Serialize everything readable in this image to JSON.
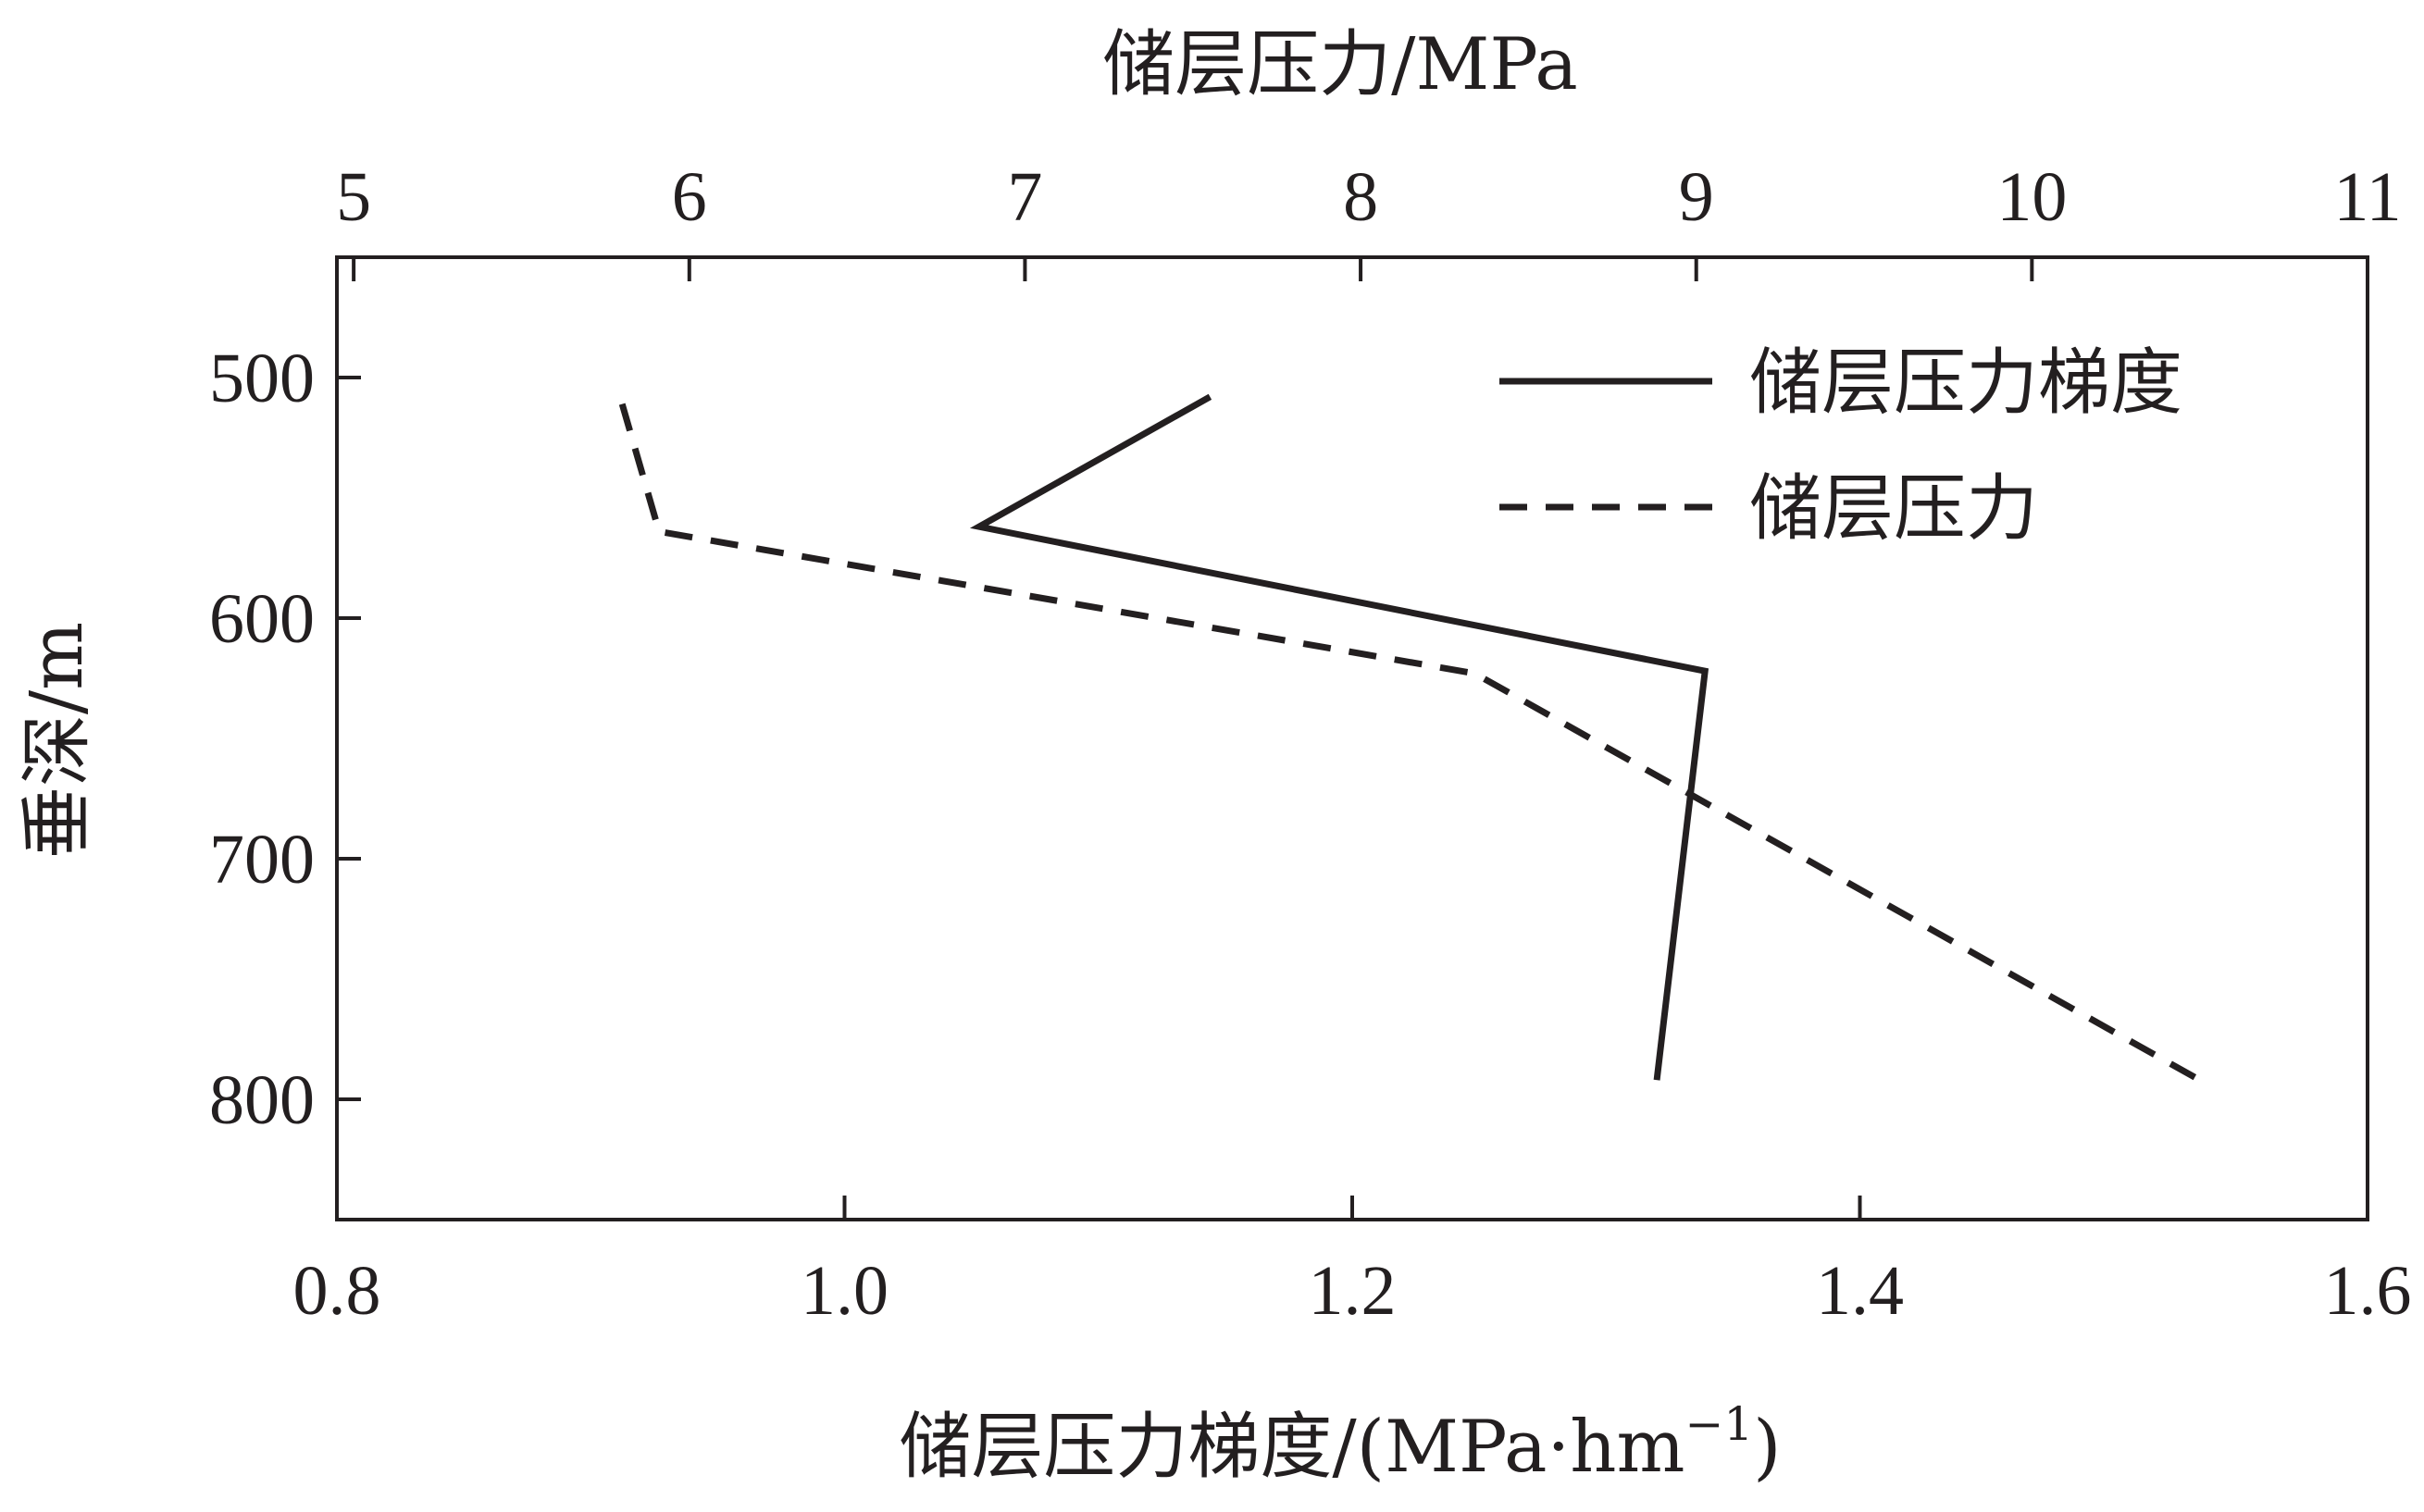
{
  "chart_data": {
    "type": "line",
    "orientation": "depth-vertical",
    "y_axis": {
      "label": "垂深/m",
      "range": [
        450,
        850
      ],
      "inverted": true,
      "ticks": [
        500,
        600,
        700,
        800
      ]
    },
    "x_axis_bottom": {
      "label_main": "储层压力梯度/(MPa·hm",
      "label_sup": "−1",
      "label_end": ")",
      "range": [
        0.8,
        1.6
      ],
      "ticks": [
        0.8,
        1.0,
        1.2,
        1.4,
        1.6
      ],
      "tick_labels": [
        "0.8",
        "1.0",
        "1.2",
        "1.4",
        "1.6"
      ]
    },
    "x_axis_top": {
      "label": "储层压力/MPa",
      "range": [
        4.95,
        11.0
      ],
      "ticks": [
        5,
        6,
        7,
        8,
        9,
        10,
        11
      ],
      "tick_labels": [
        "5",
        "6",
        "7",
        "8",
        "9",
        "10",
        "11"
      ]
    },
    "series": [
      {
        "name": "储层压力梯度",
        "axis": "bottom",
        "style": "solid",
        "points": [
          {
            "x": 1.144,
            "depth": 508
          },
          {
            "x": 1.053,
            "depth": 562
          },
          {
            "x": 1.339,
            "depth": 622
          },
          {
            "x": 1.32,
            "depth": 792
          }
        ]
      },
      {
        "name": "储层压力",
        "axis": "top",
        "style": "dashed",
        "points": [
          {
            "x": 5.8,
            "depth": 511
          },
          {
            "x": 5.91,
            "depth": 564
          },
          {
            "x": 8.34,
            "depth": 623
          },
          {
            "x": 10.5,
            "depth": 792
          }
        ]
      }
    ],
    "legend": {
      "position": "top-right",
      "entries": [
        {
          "label": "储层压力梯度",
          "style": "solid"
        },
        {
          "label": "储层压力",
          "style": "dashed"
        }
      ]
    },
    "grid": false,
    "line_color": "#231f20"
  }
}
